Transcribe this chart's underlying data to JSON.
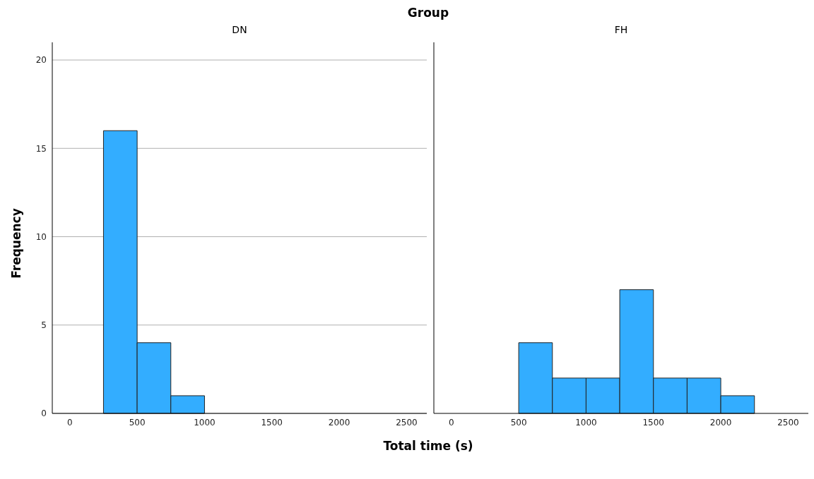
{
  "chart_data": [
    {
      "type": "histogram",
      "title": "DN",
      "annotations": [
        "Group"
      ],
      "xlabel": "Total time (s)",
      "ylabel": "Frequency",
      "bins": [
        250,
        500,
        750,
        1000
      ],
      "values": [
        16,
        4,
        1
      ],
      "color": "#33adff",
      "xlim": [
        -130,
        2650
      ],
      "xticks": [
        0,
        500,
        1000,
        1500,
        2000,
        2500
      ],
      "ylim": [
        0,
        21
      ],
      "yticks": [
        0,
        5,
        10,
        15,
        20
      ],
      "grid": "y"
    },
    {
      "type": "histogram",
      "title": "FH",
      "bins": [
        500,
        750,
        1000,
        1250,
        1500,
        1750,
        2000,
        2250
      ],
      "values": [
        4,
        2,
        2,
        7,
        2,
        2,
        1
      ],
      "color": "#33adff",
      "xlim": [
        -130,
        2650
      ],
      "xticks": [
        0,
        500,
        1000,
        1500,
        2000,
        2500
      ],
      "ylim": [
        0,
        21
      ],
      "yticks": [
        0,
        5,
        10,
        15,
        20
      ],
      "grid": "y",
      "tick_labels": "x"
    }
  ]
}
